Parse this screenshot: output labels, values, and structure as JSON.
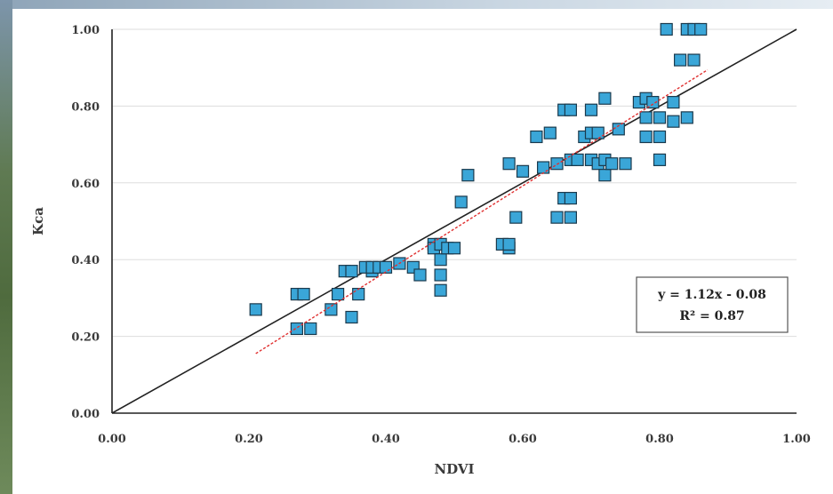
{
  "chart_data": {
    "type": "scatter",
    "title": "",
    "xlabel": "NDVI",
    "ylabel": "Kca",
    "xlim": [
      0.0,
      1.0
    ],
    "ylim": [
      0.0,
      1.0
    ],
    "x_ticks": [
      "0.00",
      "0.20",
      "0.40",
      "0.60",
      "0.80",
      "1.00"
    ],
    "y_ticks": [
      "0.00",
      "0.20",
      "0.40",
      "0.60",
      "0.80",
      "1.00"
    ],
    "grid": "horizontal",
    "legend": "none",
    "colors": {
      "marker": "#3aa6d8",
      "marker_edge": "#1b3a4d",
      "identity_line": "#222222",
      "trend_line": "#e03030",
      "grid": "#dddddd"
    },
    "annotation": {
      "equation": "y = 1.12x - 0.08",
      "r2": "R² = 0.87"
    },
    "trend_line": {
      "slope": 1.12,
      "intercept": -0.08,
      "x_range": [
        0.21,
        0.87
      ]
    },
    "identity_line": {
      "x_range": [
        0.0,
        1.0
      ]
    },
    "series": [
      {
        "points": [
          [
            0.21,
            0.27
          ],
          [
            0.27,
            0.31
          ],
          [
            0.28,
            0.31
          ],
          [
            0.27,
            0.22
          ],
          [
            0.29,
            0.22
          ],
          [
            0.32,
            0.27
          ],
          [
            0.33,
            0.31
          ],
          [
            0.34,
            0.37
          ],
          [
            0.35,
            0.37
          ],
          [
            0.35,
            0.25
          ],
          [
            0.36,
            0.31
          ],
          [
            0.37,
            0.38
          ],
          [
            0.38,
            0.37
          ],
          [
            0.38,
            0.38
          ],
          [
            0.39,
            0.38
          ],
          [
            0.4,
            0.38
          ],
          [
            0.42,
            0.39
          ],
          [
            0.44,
            0.38
          ],
          [
            0.45,
            0.36
          ],
          [
            0.47,
            0.44
          ],
          [
            0.47,
            0.43
          ],
          [
            0.48,
            0.4
          ],
          [
            0.48,
            0.36
          ],
          [
            0.48,
            0.32
          ],
          [
            0.48,
            0.44
          ],
          [
            0.49,
            0.43
          ],
          [
            0.5,
            0.43
          ],
          [
            0.51,
            0.55
          ],
          [
            0.52,
            0.62
          ],
          [
            0.57,
            0.44
          ],
          [
            0.58,
            0.43
          ],
          [
            0.58,
            0.44
          ],
          [
            0.58,
            0.65
          ],
          [
            0.59,
            0.51
          ],
          [
            0.6,
            0.63
          ],
          [
            0.62,
            0.72
          ],
          [
            0.63,
            0.64
          ],
          [
            0.64,
            0.73
          ],
          [
            0.65,
            0.51
          ],
          [
            0.65,
            0.65
          ],
          [
            0.66,
            0.56
          ],
          [
            0.66,
            0.79
          ],
          [
            0.67,
            0.51
          ],
          [
            0.67,
            0.56
          ],
          [
            0.67,
            0.79
          ],
          [
            0.67,
            0.66
          ],
          [
            0.68,
            0.66
          ],
          [
            0.69,
            0.72
          ],
          [
            0.7,
            0.73
          ],
          [
            0.7,
            0.79
          ],
          [
            0.7,
            0.66
          ],
          [
            0.71,
            0.65
          ],
          [
            0.71,
            0.73
          ],
          [
            0.72,
            0.82
          ],
          [
            0.72,
            0.66
          ],
          [
            0.72,
            0.62
          ],
          [
            0.73,
            0.65
          ],
          [
            0.74,
            0.74
          ],
          [
            0.75,
            0.65
          ],
          [
            0.77,
            0.81
          ],
          [
            0.78,
            0.72
          ],
          [
            0.78,
            0.82
          ],
          [
            0.78,
            0.77
          ],
          [
            0.79,
            0.81
          ],
          [
            0.8,
            0.77
          ],
          [
            0.8,
            0.72
          ],
          [
            0.8,
            0.66
          ],
          [
            0.81,
            1.0
          ],
          [
            0.82,
            0.76
          ],
          [
            0.82,
            0.81
          ],
          [
            0.83,
            0.92
          ],
          [
            0.84,
            0.77
          ],
          [
            0.84,
            1.0
          ],
          [
            0.85,
            0.92
          ],
          [
            0.85,
            1.0
          ],
          [
            0.86,
            1.0
          ]
        ]
      }
    ]
  }
}
